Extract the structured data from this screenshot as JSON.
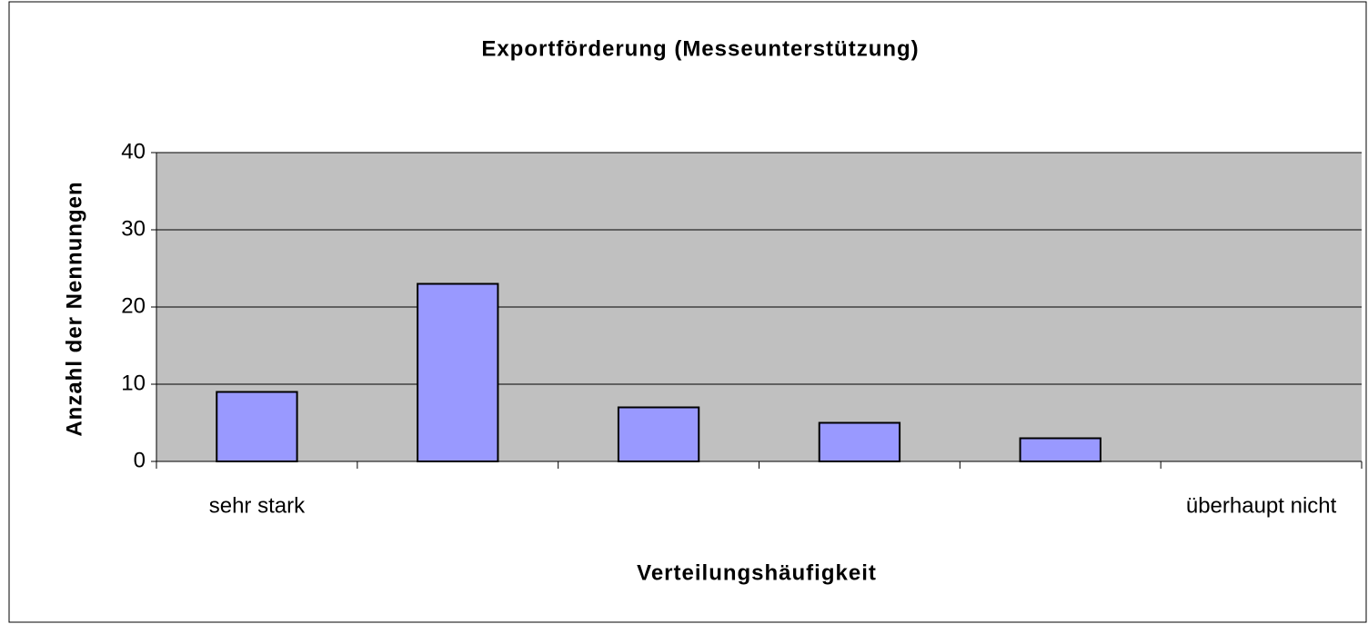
{
  "chart_data": {
    "type": "bar",
    "title": "Exportförderung (Messeunterstützung)",
    "x_label": "Verteilungshäufigkeit",
    "y_label": "Anzahl der Nennungen",
    "categories": [
      "sehr stark",
      null,
      null,
      null,
      null,
      "überhaupt nicht"
    ],
    "values": [
      9,
      23,
      7,
      5,
      3,
      0
    ],
    "color": "#9999ff",
    "ylim": [
      0,
      40
    ],
    "yticks": [
      0,
      10,
      20,
      30,
      40
    ],
    "grid": true
  }
}
